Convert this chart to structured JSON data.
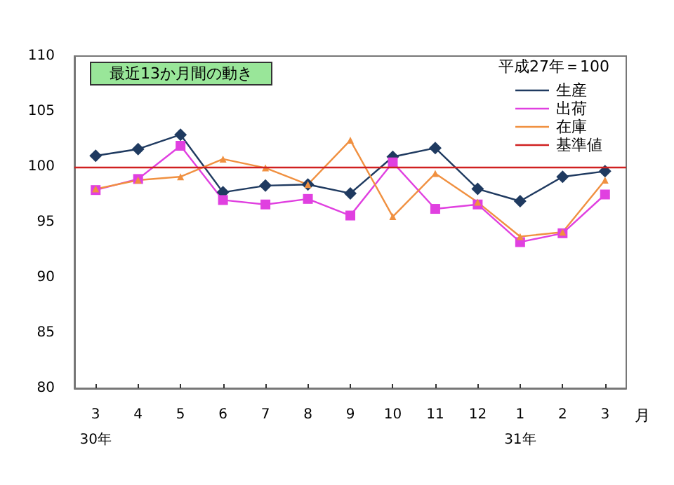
{
  "chart_data": {
    "type": "line",
    "title": "最近13か月間の動き",
    "subtitle": "平成27年＝100",
    "xlabel": "月",
    "categories": [
      "3\n30年",
      "4",
      "5",
      "6",
      "7",
      "8",
      "9",
      "10",
      "11",
      "12",
      "1\n31年",
      "2",
      "3"
    ],
    "series": [
      {
        "name": "生産",
        "color": "#1f3a60",
        "marker": "diamond",
        "values": [
          101.0,
          101.6,
          102.9,
          97.7,
          98.3,
          98.4,
          97.6,
          100.9,
          101.7,
          98.0,
          96.9,
          99.1,
          99.6
        ]
      },
      {
        "name": "出荷",
        "color": "#e040e0",
        "marker": "square",
        "values": [
          97.9,
          98.9,
          101.9,
          97.0,
          96.6,
          97.1,
          95.6,
          100.4,
          96.2,
          96.6,
          93.2,
          94.0,
          97.5
        ]
      },
      {
        "name": "在庫",
        "color": "#f09040",
        "marker": "triangle",
        "values": [
          98.0,
          98.8,
          99.1,
          100.7,
          99.9,
          98.4,
          102.4,
          95.5,
          99.4,
          96.8,
          93.7,
          94.1,
          98.8
        ]
      }
    ],
    "ref_lines": [
      {
        "axis": "y",
        "value": 100,
        "label": "基準値",
        "color": "#d02020"
      }
    ],
    "ylim": [
      80,
      110
    ],
    "yticks": [
      80,
      85,
      90,
      95,
      100,
      105,
      110
    ],
    "grid": false,
    "legend": "top right",
    "line_style": "solid"
  }
}
